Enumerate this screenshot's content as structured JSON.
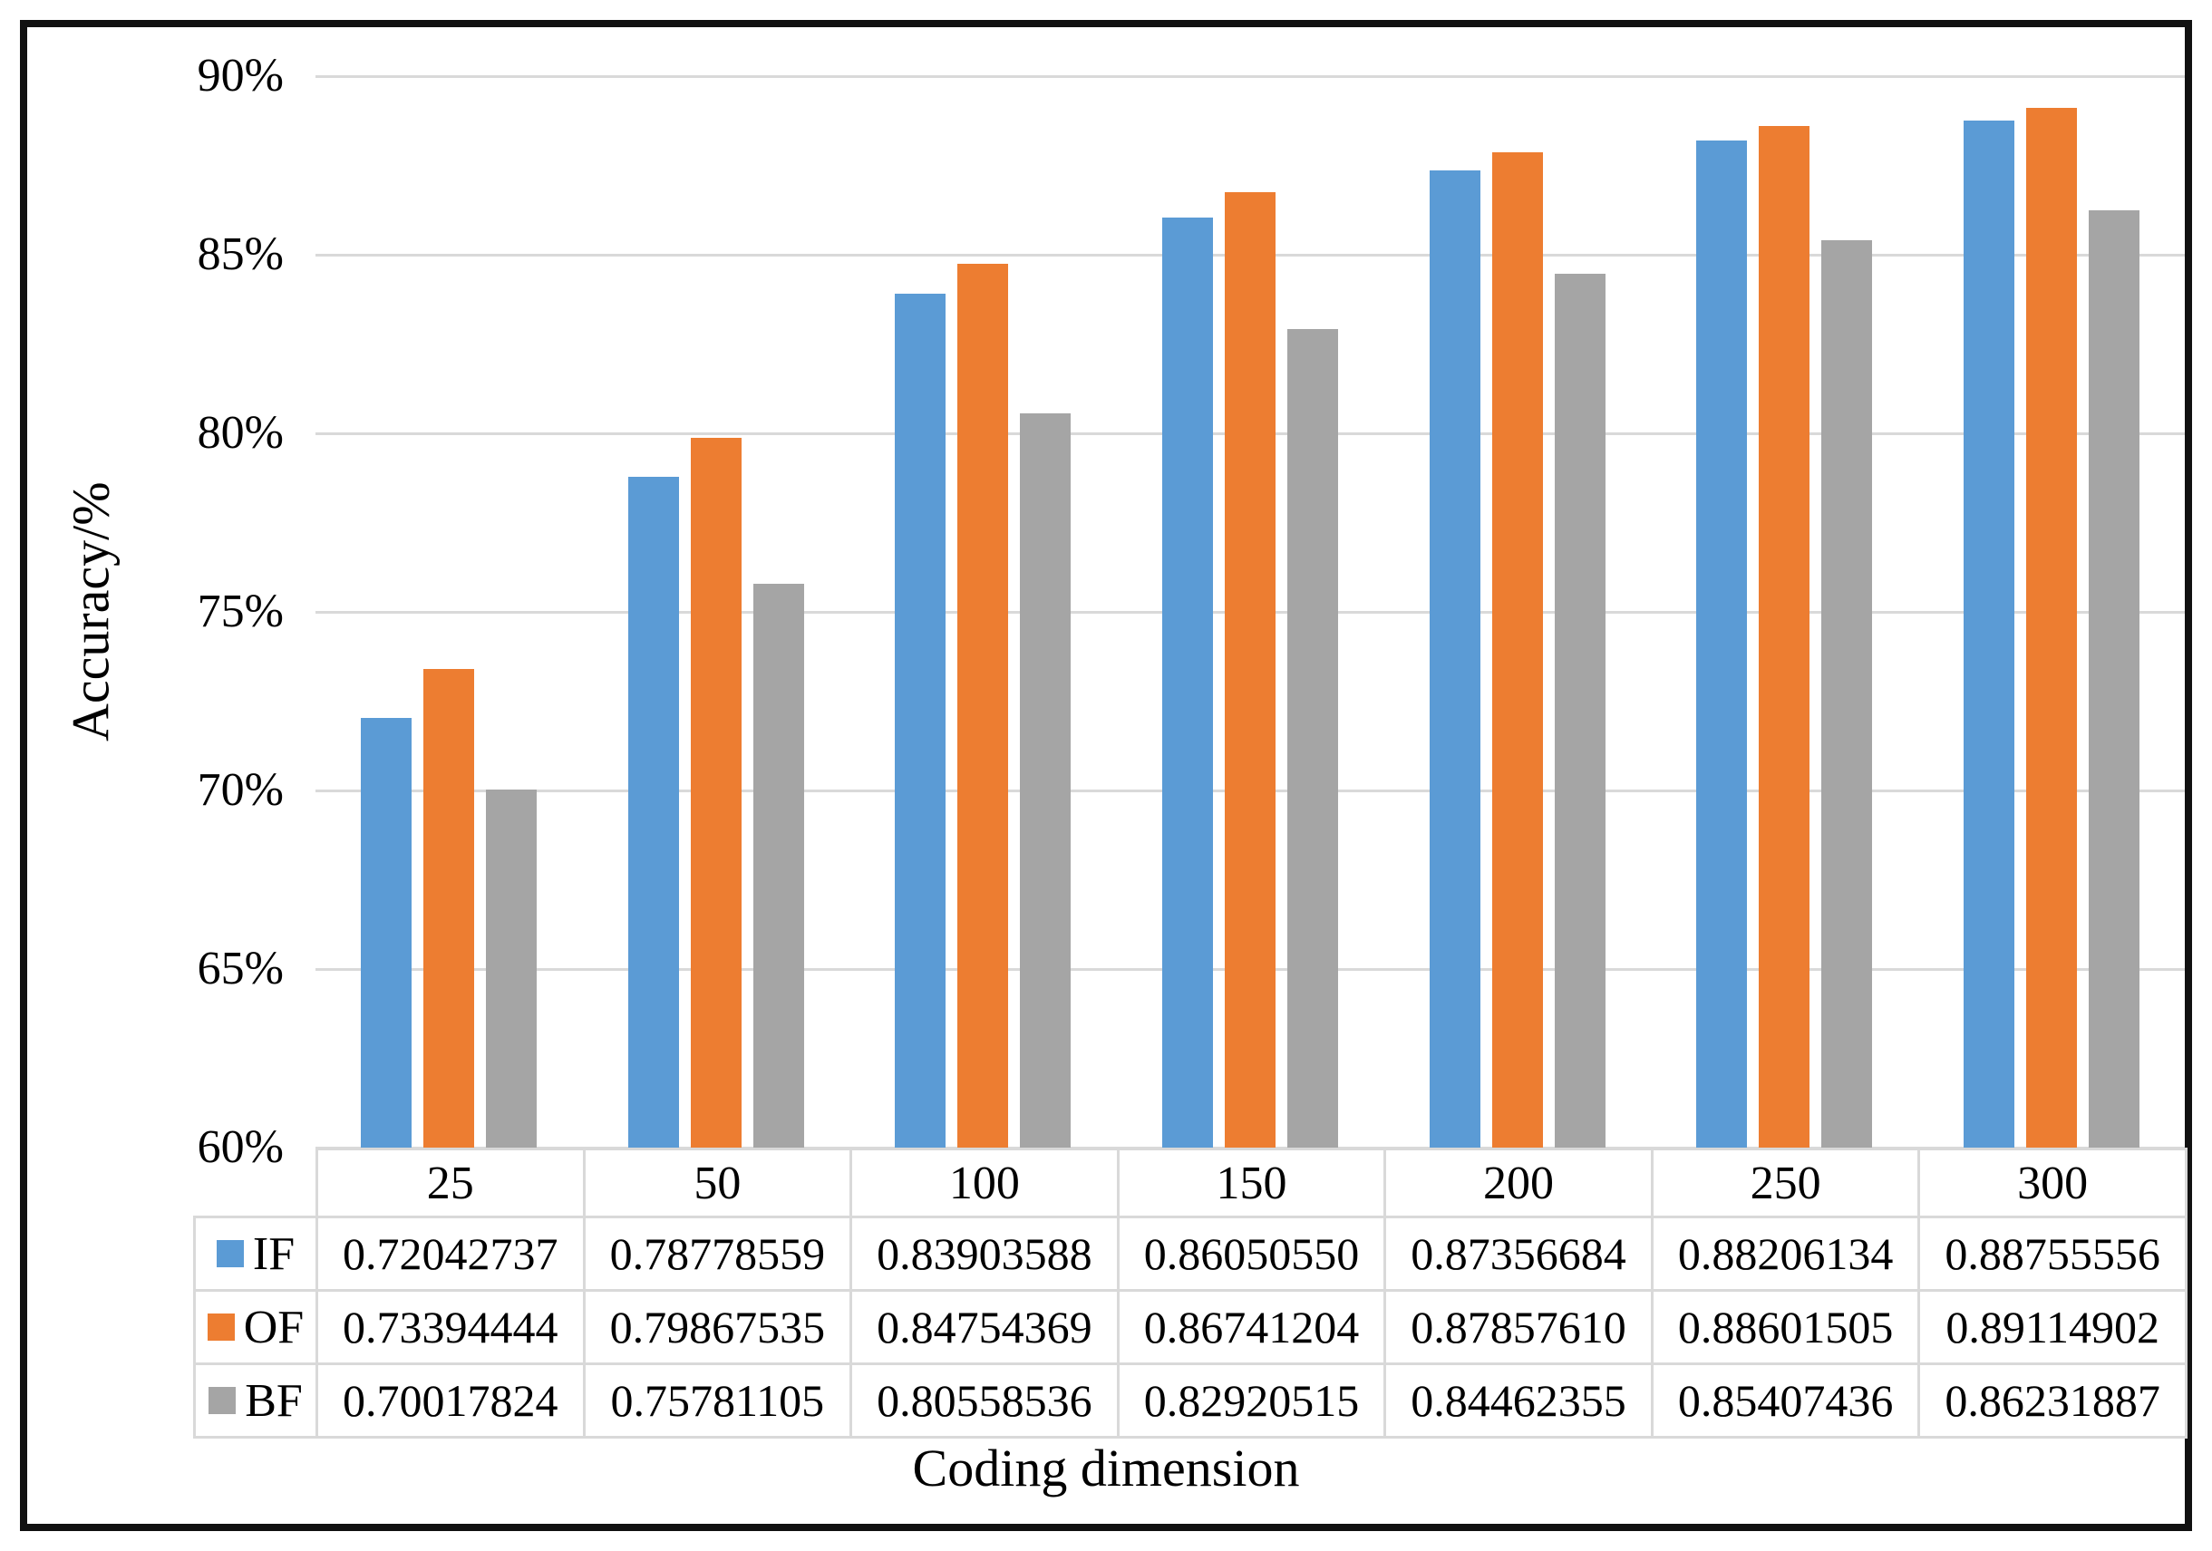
{
  "figure": {
    "y_axis_title": "Accuracy/%",
    "x_axis_title": "Coding dimension",
    "y_tick_labels": [
      "90%",
      "85%",
      "80%",
      "75%",
      "70%",
      "65%",
      "60%"
    ]
  },
  "colors": {
    "frame_border": "#111111",
    "gridline": "#D9D9D9",
    "table_border": "#D9D9D9",
    "series_if": "#5B9BD5",
    "series_of": "#ED7D31",
    "series_bf": "#A5A5A5"
  },
  "chart_data": {
    "type": "bar",
    "title": "",
    "xlabel": "Coding dimension",
    "ylabel": "Accuracy/%",
    "ylim": [
      0.6,
      0.9
    ],
    "y_tick_step": 0.05,
    "y_tick_format": "percent",
    "grid": true,
    "legend_position": "data-table-left",
    "categories": [
      "25",
      "50",
      "100",
      "150",
      "200",
      "250",
      "300"
    ],
    "series": [
      {
        "name": "IF",
        "color": "#5B9BD5",
        "values": [
          0.72042737,
          0.78778559,
          0.83903588,
          0.8605055,
          0.87356684,
          0.88206134,
          0.88755556
        ],
        "labels": [
          "0.72042737",
          "0.78778559",
          "0.83903588",
          "0.86050550",
          "0.87356684",
          "0.88206134",
          "0.88755556"
        ]
      },
      {
        "name": "OF",
        "color": "#ED7D31",
        "values": [
          0.73394444,
          0.79867535,
          0.84754369,
          0.86741204,
          0.8785761,
          0.88601505,
          0.89114902
        ],
        "labels": [
          "0.73394444",
          "0.79867535",
          "0.84754369",
          "0.86741204",
          "0.87857610",
          "0.88601505",
          "0.89114902"
        ]
      },
      {
        "name": "BF",
        "color": "#A5A5A5",
        "values": [
          0.70017824,
          0.75781105,
          0.80558536,
          0.82920515,
          0.84462355,
          0.85407436,
          0.86231887
        ],
        "labels": [
          "0.70017824",
          "0.75781105",
          "0.80558536",
          "0.82920515",
          "0.84462355",
          "0.85407436",
          "0.86231887"
        ]
      }
    ]
  }
}
